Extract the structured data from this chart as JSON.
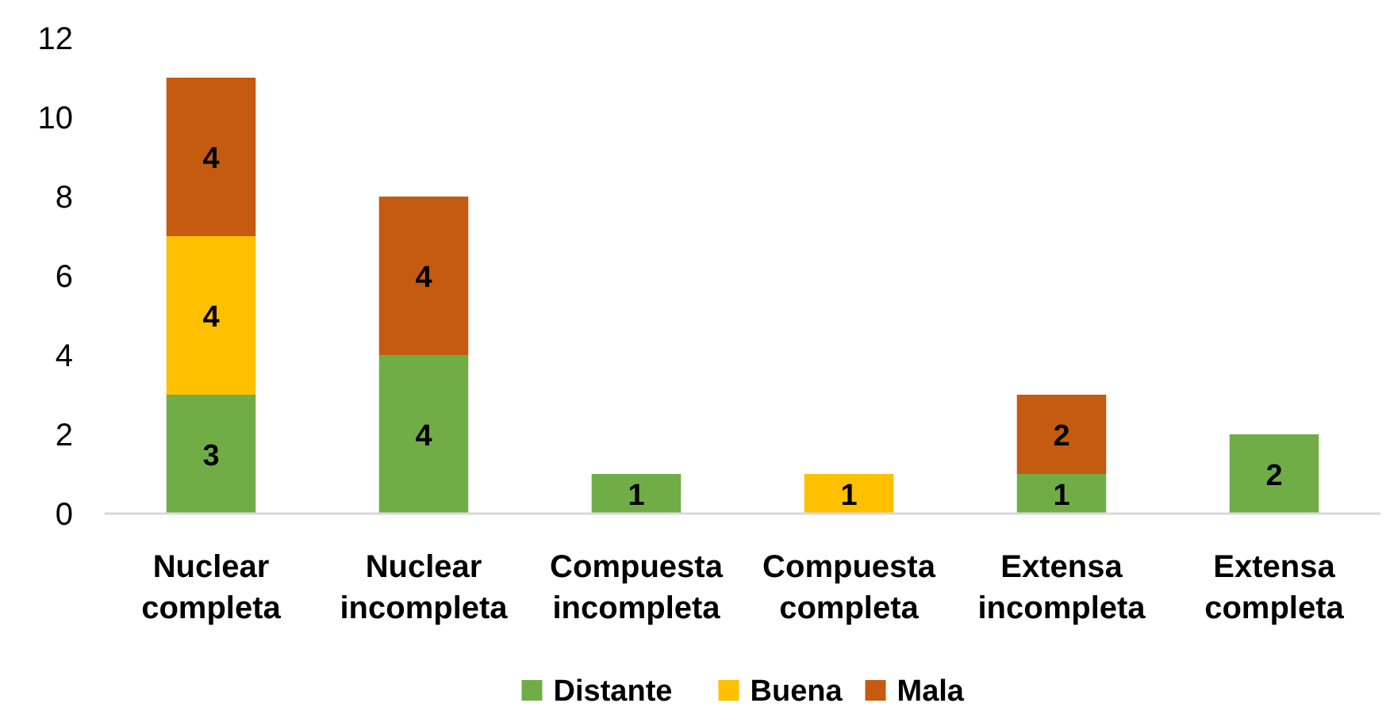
{
  "chart_data": {
    "type": "bar",
    "stacked": true,
    "categories": [
      "Nuclear completa",
      "Nuclear incompleta",
      "Compuesta incompleta",
      "Compuesta completa",
      "Extensa incompleta",
      "Extensa completa"
    ],
    "series": [
      {
        "name": "Distante",
        "color": "#70ad47",
        "values": [
          3,
          4,
          1,
          null,
          1,
          2
        ]
      },
      {
        "name": "Buena",
        "color": "#ffc000",
        "values": [
          4,
          null,
          null,
          1,
          null,
          null
        ]
      },
      {
        "name": "Mala",
        "color": "#c55a11",
        "values": [
          4,
          4,
          null,
          null,
          2,
          null
        ]
      }
    ],
    "ylim": [
      0,
      12
    ],
    "yticks": [
      0,
      2,
      4,
      6,
      8,
      10,
      12
    ],
    "grid": false,
    "legend": "bottom",
    "data_labels": true
  }
}
